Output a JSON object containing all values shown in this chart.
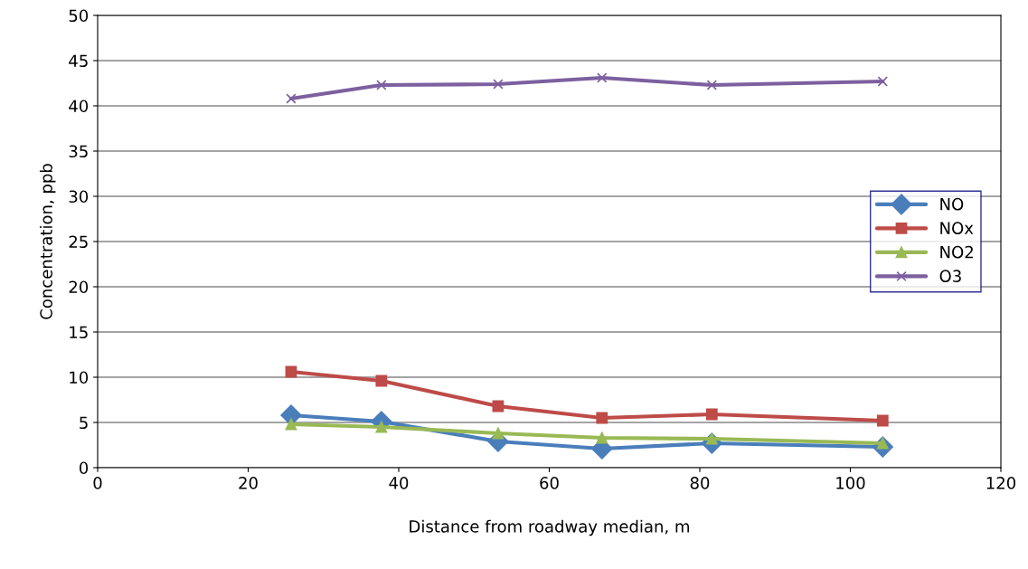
{
  "chart_data": {
    "type": "line",
    "xlabel": "Distance from roadway median, m",
    "ylabel": "Concentration, ppb",
    "x": [
      25.7,
      37.7,
      53.2,
      67.0,
      81.6,
      104.3
    ],
    "series": [
      {
        "name": "NO",
        "color": "#4a7ebb",
        "marker": "diamond",
        "values": [
          5.8,
          5.1,
          2.9,
          2.1,
          2.7,
          2.3
        ]
      },
      {
        "name": "NOx",
        "color": "#be4b48",
        "marker": "square",
        "values": [
          10.6,
          9.6,
          6.8,
          5.5,
          5.9,
          5.2
        ]
      },
      {
        "name": "NO2",
        "color": "#98b954",
        "marker": "triangle",
        "values": [
          4.8,
          4.5,
          3.8,
          3.3,
          3.2,
          2.7
        ]
      },
      {
        "name": "O3",
        "color": "#7d60a0",
        "marker": "cross",
        "values": [
          40.8,
          42.3,
          42.4,
          43.1,
          42.3,
          42.7
        ]
      }
    ],
    "xlim": [
      0,
      120
    ],
    "xticks": [
      0,
      20,
      40,
      60,
      80,
      100,
      120
    ],
    "ylim": [
      0,
      50
    ],
    "yticks": [
      0,
      5,
      10,
      15,
      20,
      25,
      30,
      35,
      40,
      45,
      50
    ],
    "grid": "y",
    "legend": "center right",
    "line_style": "solid"
  }
}
